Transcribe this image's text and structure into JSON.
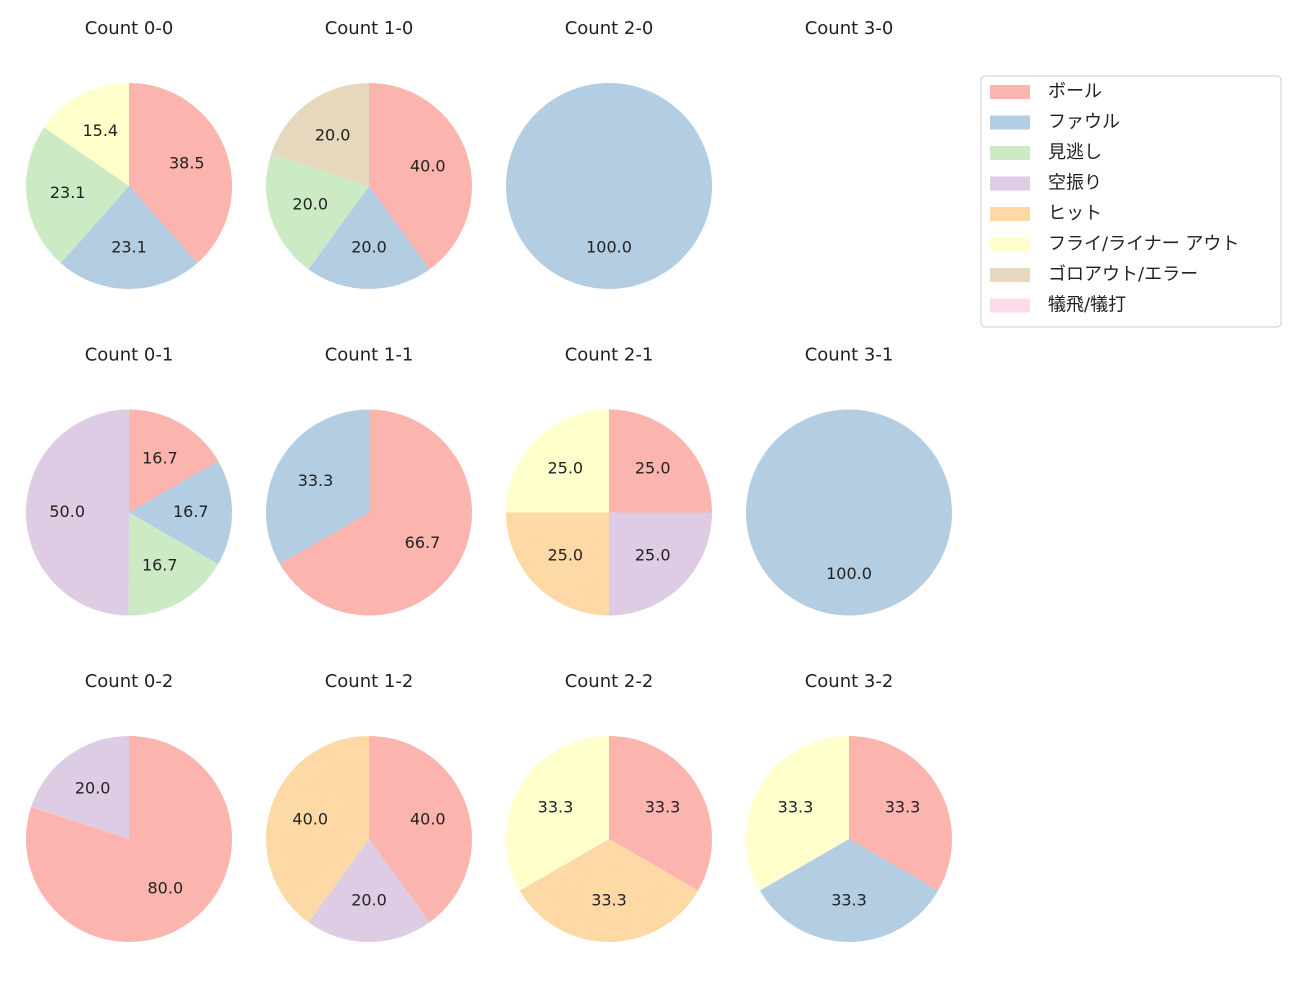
{
  "chart_data": [
    {
      "type": "pie",
      "title": "Count 0-0",
      "categories": [
        "ボール",
        "ファウル",
        "見逃し",
        "フライ/ライナー アウト"
      ],
      "values": [
        38.5,
        23.1,
        23.1,
        15.4
      ],
      "value_labels": [
        "38.5",
        "23.1",
        "23.1",
        "15.4"
      ]
    },
    {
      "type": "pie",
      "title": "Count 1-0",
      "categories": [
        "ボール",
        "ファウル",
        "見逃し",
        "ゴロアウト/エラー"
      ],
      "values": [
        40,
        20,
        20,
        20
      ],
      "value_labels": [
        "40.0",
        "20.0",
        "20.0",
        "20.0"
      ]
    },
    {
      "type": "pie",
      "title": "Count 2-0",
      "categories": [
        "ファウル"
      ],
      "values": [
        100
      ],
      "value_labels": [
        "100.0"
      ]
    },
    {
      "type": "pie",
      "title": "Count 3-0",
      "categories": [],
      "values": [],
      "value_labels": []
    },
    {
      "type": "pie",
      "title": "Count 0-1",
      "categories": [
        "ボール",
        "ファウル",
        "見逃し",
        "空振り"
      ],
      "values": [
        16.7,
        16.7,
        16.7,
        50
      ],
      "value_labels": [
        "16.7",
        "16.7",
        "16.7",
        "50.0"
      ]
    },
    {
      "type": "pie",
      "title": "Count 1-1",
      "categories": [
        "ボール",
        "ファウル"
      ],
      "values": [
        66.7,
        33.3
      ],
      "value_labels": [
        "66.7",
        "33.3"
      ]
    },
    {
      "type": "pie",
      "title": "Count 2-1",
      "categories": [
        "ボール",
        "空振り",
        "ヒット",
        "フライ/ライナー アウト"
      ],
      "values": [
        25,
        25,
        25,
        25
      ],
      "value_labels": [
        "25.0",
        "25.0",
        "25.0",
        "25.0"
      ]
    },
    {
      "type": "pie",
      "title": "Count 3-1",
      "categories": [
        "ファウル"
      ],
      "values": [
        100
      ],
      "value_labels": [
        "100.0"
      ]
    },
    {
      "type": "pie",
      "title": "Count 0-2",
      "categories": [
        "ボール",
        "空振り"
      ],
      "values": [
        80,
        20
      ],
      "value_labels": [
        "80.0",
        "20.0"
      ]
    },
    {
      "type": "pie",
      "title": "Count 1-2",
      "categories": [
        "ボール",
        "空振り",
        "ヒット"
      ],
      "values": [
        40,
        20,
        40
      ],
      "value_labels": [
        "40.0",
        "20.0",
        "40.0"
      ]
    },
    {
      "type": "pie",
      "title": "Count 2-2",
      "categories": [
        "ボール",
        "ヒット",
        "フライ/ライナー アウト"
      ],
      "values": [
        33.3,
        33.3,
        33.3
      ],
      "value_labels": [
        "33.3",
        "33.3",
        "33.3"
      ]
    },
    {
      "type": "pie",
      "title": "Count 3-2",
      "categories": [
        "ボール",
        "ファウル",
        "フライ/ライナー アウト"
      ],
      "values": [
        33.3,
        33.3,
        33.3
      ],
      "value_labels": [
        "33.3",
        "33.3",
        "33.3"
      ]
    }
  ],
  "legend": {
    "position": "upper right",
    "labels": [
      "ボール",
      "ファウル",
      "見逃し",
      "空振り",
      "ヒット",
      "フライ/ライナー アウト",
      "ゴロアウト/エラー",
      "犠飛/犠打"
    ],
    "colors": [
      "#fbb4ae",
      "#b3cde3",
      "#ccebc5",
      "#decbe4",
      "#fed9a6",
      "#ffffcc",
      "#e5d8bd",
      "#fddaec"
    ]
  }
}
